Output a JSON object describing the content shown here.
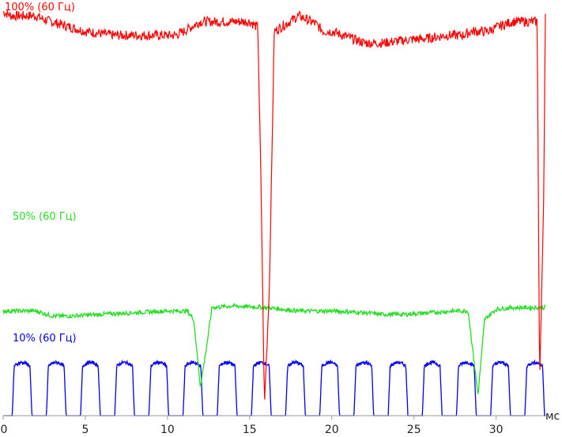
{
  "chart_data": {
    "type": "line",
    "xlabel": "мс",
    "xlim": [
      0,
      33
    ],
    "xticks": [
      0,
      5,
      10,
      15,
      20,
      25,
      30
    ],
    "grid": false,
    "axis_color": "#9a9a9a",
    "series": [
      {
        "name": "100% (60 Гц)",
        "color": "#ff0000",
        "x": [
          0,
          0.5,
          1,
          2,
          2.5,
          5,
          6.7,
          8,
          10,
          10.5,
          11,
          12,
          14,
          15,
          15.5,
          15.7,
          15.9,
          16.2,
          16.5,
          18,
          19,
          19.5,
          20,
          22,
          23,
          24,
          25,
          25.5,
          27,
          28,
          28.5,
          29.5,
          30,
          31,
          32,
          32.5,
          32.65,
          32.9,
          33
        ],
        "y": [
          1.01,
          1.0,
          1.0,
          1.0,
          0.99,
          0.96,
          0.95,
          0.95,
          0.95,
          0.95,
          0.96,
          0.985,
          0.985,
          0.985,
          0.97,
          0.55,
          0.0,
          0.3,
          0.96,
          1.0,
          0.98,
          0.96,
          0.96,
          0.93,
          0.93,
          0.935,
          0.94,
          0.94,
          0.95,
          0.95,
          0.96,
          0.96,
          0.97,
          0.985,
          0.985,
          0.985,
          0.05,
          0.55,
          0.995
        ]
      },
      {
        "name": "50% (60 Гц)",
        "color": "#22dd22",
        "x": [
          0,
          2,
          3,
          4,
          6,
          8,
          10,
          11.2,
          11.6,
          12.0,
          12.4,
          12.7,
          14,
          16,
          17,
          18,
          20,
          22,
          23,
          24.5,
          26,
          27.5,
          28.3,
          28.6,
          28.9,
          29.3,
          30,
          31,
          32.5,
          33
        ],
        "y": [
          0.5,
          0.5,
          0.47,
          0.47,
          0.48,
          0.49,
          0.5,
          0.5,
          0.45,
          0.05,
          0.3,
          0.52,
          0.53,
          0.52,
          0.51,
          0.5,
          0.5,
          0.49,
          0.48,
          0.48,
          0.49,
          0.5,
          0.5,
          0.25,
          0.0,
          0.45,
          0.51,
          0.52,
          0.52,
          0.52
        ]
      },
      {
        "name": "10% (60 Гц)",
        "color": "#0000ee",
        "pulse_period": 2.08,
        "pulse_start": 0.55,
        "pulse_width": 1.2,
        "pulse_count": 16,
        "level_low": 0.0,
        "level_high": 0.99
      }
    ]
  }
}
